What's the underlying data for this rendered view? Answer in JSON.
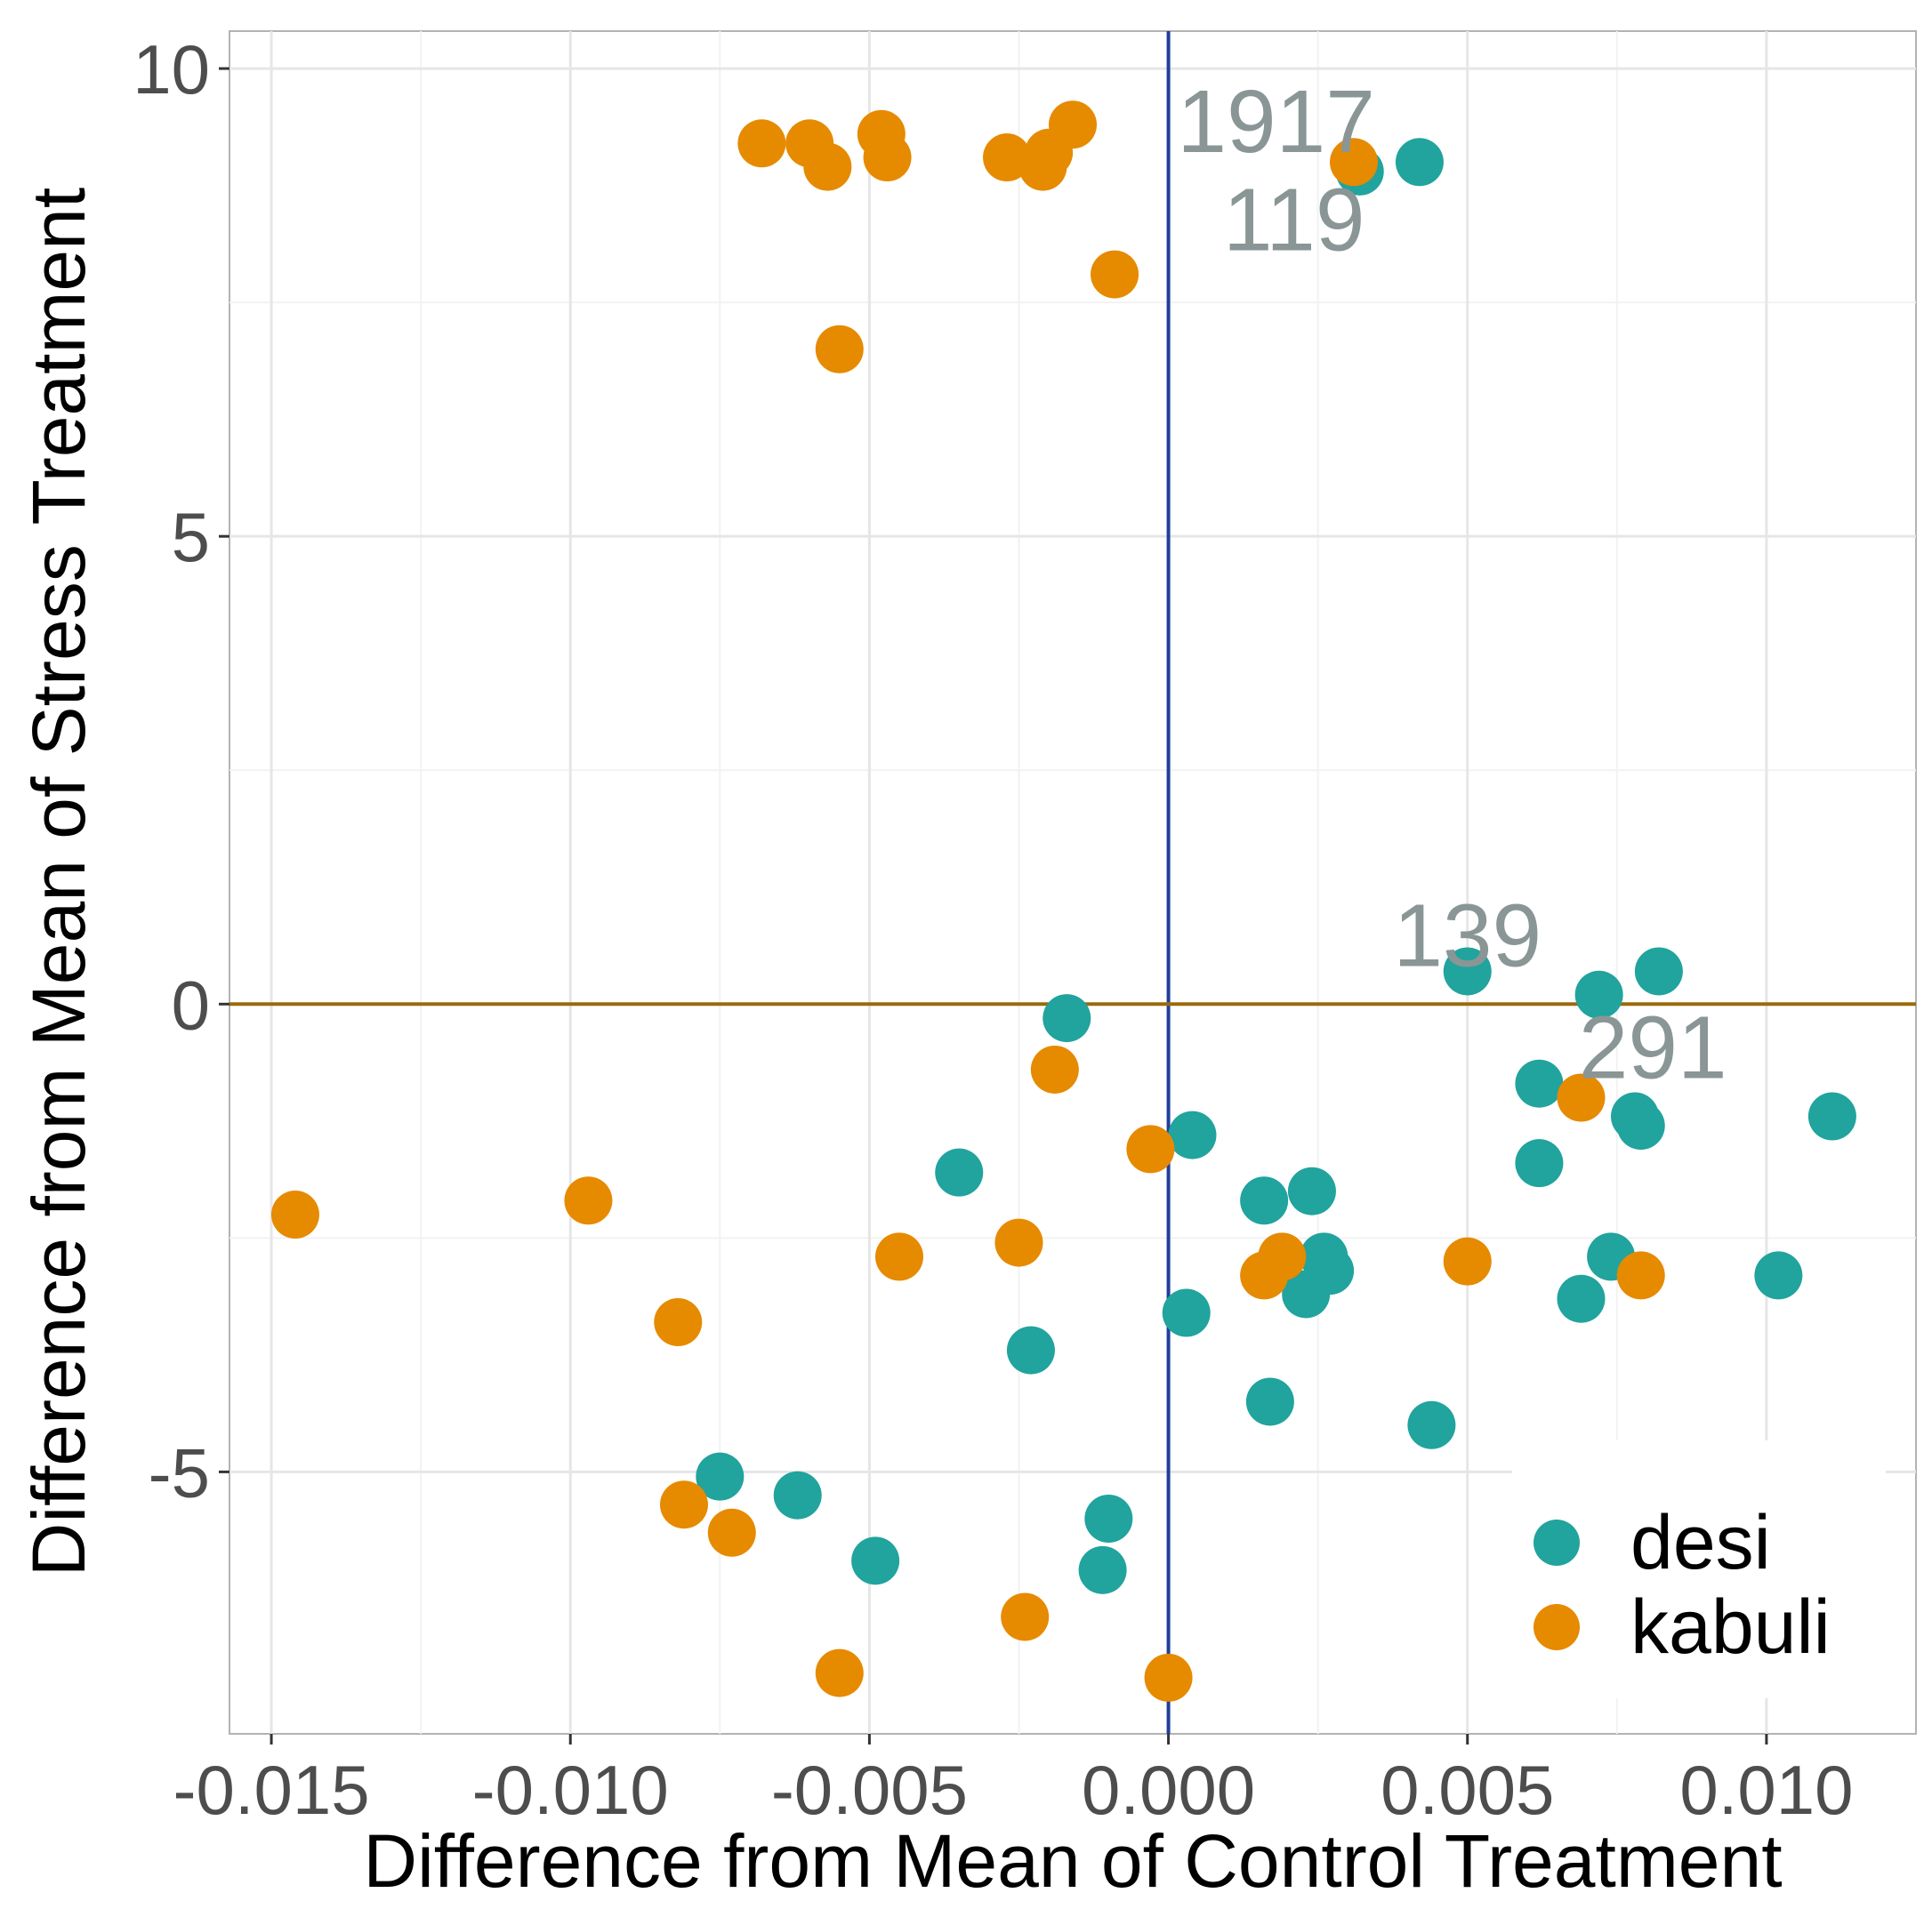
{
  "chart_data": {
    "type": "scatter",
    "xlabel": "Difference from Mean of Control Treatment",
    "ylabel": "Difference from Mean of Stress Treatment",
    "xlim": [
      -0.0157,
      0.0125
    ],
    "ylim": [
      -7.8,
      10.4
    ],
    "x_ticks": [
      -0.015,
      -0.01,
      -0.005,
      0.0,
      0.005,
      0.01
    ],
    "x_tick_labels": [
      "-0.015",
      "-0.010",
      "-0.005",
      "0.000",
      "0.005",
      "0.010"
    ],
    "y_ticks": [
      -5,
      0,
      5,
      10
    ],
    "y_tick_labels": [
      "-5",
      "0",
      "5",
      "10"
    ],
    "grid": true,
    "legend_position": "bottom-right",
    "reference_lines": [
      {
        "orientation": "vertical",
        "value": 0,
        "color": "#1f3f9a"
      },
      {
        "orientation": "horizontal",
        "value": 0,
        "color": "#9a6a0a"
      }
    ],
    "series": [
      {
        "name": "desi",
        "color": "#21a39e",
        "points": [
          {
            "x": 0.0032,
            "y": 8.9
          },
          {
            "x": 0.0042,
            "y": 9.0
          },
          {
            "x": 0.005,
            "y": 0.35
          },
          {
            "x": 0.0072,
            "y": 0.1
          },
          {
            "x": 0.0082,
            "y": 0.35
          },
          {
            "x": -0.0017,
            "y": -0.15
          },
          {
            "x": 0.0062,
            "y": -0.85
          },
          {
            "x": 0.0078,
            "y": -1.2
          },
          {
            "x": 0.0079,
            "y": -1.3
          },
          {
            "x": 0.0111,
            "y": -1.2
          },
          {
            "x": 0.0062,
            "y": -1.7
          },
          {
            "x": 0.0004,
            "y": -1.4
          },
          {
            "x": -0.0035,
            "y": -1.8
          },
          {
            "x": 0.0016,
            "y": -2.1
          },
          {
            "x": 0.0024,
            "y": -2.0
          },
          {
            "x": 0.0026,
            "y": -2.7
          },
          {
            "x": 0.0027,
            "y": -2.85
          },
          {
            "x": 0.0023,
            "y": -3.1
          },
          {
            "x": 0.0074,
            "y": -2.7
          },
          {
            "x": 0.0069,
            "y": -3.15
          },
          {
            "x": 0.0102,
            "y": -2.9
          },
          {
            "x": 0.0003,
            "y": -3.3
          },
          {
            "x": -0.0023,
            "y": -3.7
          },
          {
            "x": 0.0017,
            "y": -4.25
          },
          {
            "x": 0.0044,
            "y": -4.5
          },
          {
            "x": -0.0075,
            "y": -5.05
          },
          {
            "x": -0.0062,
            "y": -5.25
          },
          {
            "x": -0.0049,
            "y": -5.95
          },
          {
            "x": -0.001,
            "y": -5.5
          },
          {
            "x": -0.0011,
            "y": -6.05
          }
        ]
      },
      {
        "name": "kabuli",
        "color": "#e68a00",
        "points": [
          {
            "x": -0.0068,
            "y": 9.2
          },
          {
            "x": -0.006,
            "y": 9.2
          },
          {
            "x": -0.0057,
            "y": 8.95
          },
          {
            "x": -0.0048,
            "y": 9.3
          },
          {
            "x": -0.0047,
            "y": 9.05
          },
          {
            "x": -0.0027,
            "y": 9.05
          },
          {
            "x": -0.0021,
            "y": 8.95
          },
          {
            "x": -0.002,
            "y": 9.1
          },
          {
            "x": -0.0016,
            "y": 9.4
          },
          {
            "x": 0.0031,
            "y": 9.0
          },
          {
            "x": -0.0009,
            "y": 7.8
          },
          {
            "x": -0.0055,
            "y": 7.0
          },
          {
            "x": -0.0019,
            "y": -0.7
          },
          {
            "x": 0.0069,
            "y": -1.0
          },
          {
            "x": -0.0003,
            "y": -1.55
          },
          {
            "x": -0.0146,
            "y": -2.25
          },
          {
            "x": -0.0097,
            "y": -2.1
          },
          {
            "x": -0.0045,
            "y": -2.7
          },
          {
            "x": -0.0025,
            "y": -2.55
          },
          {
            "x": 0.0016,
            "y": -2.9
          },
          {
            "x": 0.0019,
            "y": -2.7
          },
          {
            "x": 0.005,
            "y": -2.75
          },
          {
            "x": 0.0079,
            "y": -2.9
          },
          {
            "x": -0.0082,
            "y": -3.4
          },
          {
            "x": -0.0081,
            "y": -5.35
          },
          {
            "x": -0.0073,
            "y": -5.65
          },
          {
            "x": -0.0024,
            "y": -6.55
          },
          {
            "x": -0.0055,
            "y": -7.15
          },
          {
            "x": 0.0,
            "y": -7.2
          }
        ]
      }
    ],
    "annotations": [
      {
        "text": "1917",
        "x": 0.0018,
        "y": 9.45
      },
      {
        "text": "119",
        "x": 0.0021,
        "y": 8.4
      },
      {
        "text": "139",
        "x": 0.005,
        "y": 0.75
      },
      {
        "text": "291",
        "x": 0.0081,
        "y": -0.45
      }
    ]
  }
}
